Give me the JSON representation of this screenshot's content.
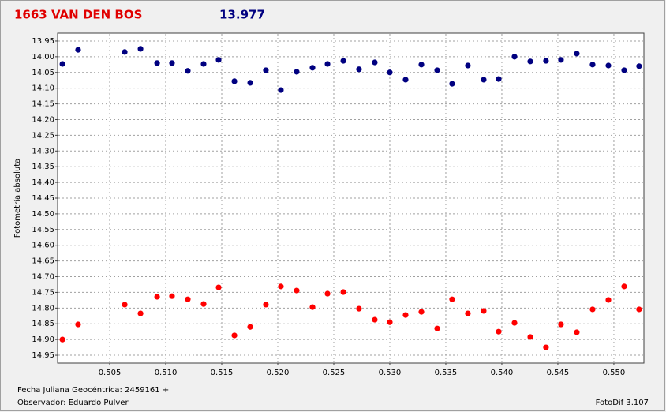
{
  "chart_data": {
    "type": "scatter",
    "title": "1663 VAN DEN BOS",
    "subtitle": "13.977",
    "y_label": "Fotometría absoluta",
    "annotations": [
      "Fecha Juliana Geocéntrica: 2459161 +",
      "Observador: Eduardo Pulver",
      "FotoDif 3.107"
    ],
    "x": [
      0.50078,
      0.50218,
      0.50634,
      0.50775,
      0.50923,
      0.51056,
      0.51197,
      0.51338,
      0.51472,
      0.51613,
      0.51754,
      0.51894,
      0.52028,
      0.52169,
      0.5231,
      0.52444,
      0.52585,
      0.52725,
      0.52866,
      0.53,
      0.53141,
      0.53282,
      0.53423,
      0.53556,
      0.53697,
      0.53838,
      0.53972,
      0.54113,
      0.54254,
      0.54394,
      0.54528,
      0.54669,
      0.5481,
      0.54951,
      0.55092,
      0.55225
    ],
    "series": [
      {
        "color": "#000080",
        "values": [
          14.023,
          13.978,
          13.985,
          13.975,
          14.02,
          14.02,
          14.045,
          14.023,
          14.01,
          14.078,
          14.083,
          14.043,
          14.106,
          14.048,
          14.035,
          14.023,
          14.013,
          14.04,
          14.018,
          14.05,
          14.073,
          14.025,
          14.043,
          14.086,
          14.028,
          14.073,
          14.071,
          14.0,
          14.015,
          14.013,
          14.01,
          13.99,
          14.025,
          14.028,
          14.043,
          14.03
        ]
      },
      {
        "color": "#ff0000",
        "values": [
          14.9,
          14.852,
          14.789,
          14.817,
          14.764,
          14.762,
          14.772,
          14.787,
          14.734,
          14.887,
          14.86,
          14.789,
          14.731,
          14.744,
          14.797,
          14.754,
          14.749,
          14.802,
          14.837,
          14.845,
          14.822,
          14.812,
          14.865,
          14.772,
          14.817,
          14.809,
          14.875,
          14.847,
          14.892,
          14.925,
          14.852,
          14.877,
          14.804,
          14.774,
          14.731,
          14.804
        ]
      }
    ],
    "xlim": [
      0.50035,
      0.55268
    ],
    "xticks": [
      0.505,
      0.51,
      0.515,
      0.52,
      0.525,
      0.53,
      0.535,
      0.54,
      0.545,
      0.55
    ],
    "xtick_labels": [
      "0.505",
      "0.510",
      "0.515",
      "0.520",
      "0.525",
      "0.530",
      "0.535",
      "0.540",
      "0.545",
      "0.550"
    ],
    "ylim": [
      14.975,
      13.925
    ],
    "yticks": [
      13.95,
      {
        "value": 14.0,
        "label": "14.00"
      },
      14.05,
      {
        "value": 14.1,
        "label": "14.10"
      },
      14.15,
      {
        "value": 14.2,
        "label": "14.20"
      },
      14.25,
      {
        "value": 14.3,
        "label": "14.30"
      },
      14.35,
      {
        "value": 14.4,
        "label": "14.40"
      },
      14.45,
      {
        "value": 14.5,
        "label": "14.50"
      },
      14.55,
      {
        "value": 14.6,
        "label": "14.60"
      },
      14.65,
      {
        "value": 14.7,
        "label": "14.70"
      },
      14.75,
      {
        "value": 14.8,
        "label": "14.80"
      },
      14.85,
      {
        "value": 14.9,
        "label": "14.90"
      },
      14.95
    ],
    "grid": true
  }
}
